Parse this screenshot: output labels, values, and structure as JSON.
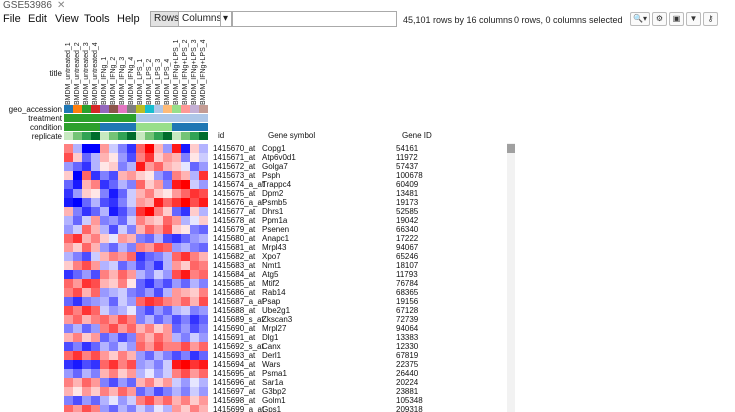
{
  "tab": {
    "title": "GSE53986"
  },
  "menu": [
    "File",
    "Edit",
    "View",
    "Tools",
    "Help"
  ],
  "toolbar": {
    "rows_label": "Rows",
    "columns_label": "Columns",
    "dropdown_arrow": "▾",
    "search_value": "",
    "summary": "45,101 rows by 16 columns",
    "selection": "0 rows, 0 columns selected",
    "icons": [
      "zoom-icon",
      "gear-icon",
      "save-icon",
      "filter-icon",
      "key-icon"
    ],
    "icon_glyphs": [
      "🔍▾",
      "⚙",
      "▣",
      "▼",
      "⚷"
    ]
  },
  "row_labels": {
    "title": "title",
    "geo_accession": "geo_accession",
    "treatment": "treatment",
    "condition": "condition",
    "replicate": "replicate"
  },
  "columns": [
    "BMDM_untreated_1",
    "BMDM_untreated_2",
    "BMDM_untreated_3",
    "BMDM_untreated_4",
    "BMDM_IFNg_1",
    "BMDM_IFNg_2",
    "BMDM_IFNg_3",
    "BMDM_IFNg_4",
    "BMDM_LPS_1",
    "BMDM_LPS_2",
    "BMDM_LPS_3",
    "BMDM_LPS_4",
    "BMDM_IFNg+LPS_1",
    "BMDM_IFNg+LPS_2",
    "BMDM_IFNg+LPS_3",
    "BMDM_IFNg+LPS_4"
  ],
  "colors": {
    "geo_accession": [
      "#1f77b4",
      "#ff7f0e",
      "#2ca02c",
      "#d62728",
      "#9467bd",
      "#8c564b",
      "#e377c2",
      "#7f7f7f",
      "#bcbd22",
      "#17becf",
      "#aec7e8",
      "#ffbb78",
      "#98df8a",
      "#ff9896",
      "#c5b0d5",
      "#c49c94"
    ],
    "treatment": [
      "#2ca02c",
      "#2ca02c",
      "#2ca02c",
      "#2ca02c",
      "#2ca02c",
      "#2ca02c",
      "#2ca02c",
      "#2ca02c",
      "#aec7e8",
      "#aec7e8",
      "#aec7e8",
      "#aec7e8",
      "#aec7e8",
      "#aec7e8",
      "#aec7e8",
      "#aec7e8"
    ],
    "condition": [
      "#2ca02c",
      "#2ca02c",
      "#2ca02c",
      "#2ca02c",
      "#1f77b4",
      "#1f77b4",
      "#1f77b4",
      "#1f77b4",
      "#98df8a",
      "#98df8a",
      "#98df8a",
      "#98df8a",
      "#1f77b4",
      "#1f77b4",
      "#1f77b4",
      "#1f77b4"
    ],
    "replicate": [
      "#c7e9c0",
      "#74c476",
      "#31a354",
      "#006d2c",
      "#c7e9c0",
      "#74c476",
      "#31a354",
      "#006d2c",
      "#c7e9c0",
      "#74c476",
      "#31a354",
      "#006d2c",
      "#c7e9c0",
      "#74c476",
      "#31a354",
      "#006d2c"
    ]
  },
  "table_headers": {
    "id": "id",
    "symbol": "Gene symbol",
    "gene_id": "Gene ID"
  },
  "rows": [
    {
      "id": "1415670_at",
      "symbol": "Copg1",
      "gene_id": "54161"
    },
    {
      "id": "1415671_at",
      "symbol": "Atp6v0d1",
      "gene_id": "11972"
    },
    {
      "id": "1415672_at",
      "symbol": "Golga7",
      "gene_id": "57437"
    },
    {
      "id": "1415673_at",
      "symbol": "Psph",
      "gene_id": "100678"
    },
    {
      "id": "1415674_a_at",
      "symbol": "Trappc4",
      "gene_id": "60409"
    },
    {
      "id": "1415675_at",
      "symbol": "Dpm2",
      "gene_id": "13481"
    },
    {
      "id": "1415676_a_at",
      "symbol": "Psmb5",
      "gene_id": "19173"
    },
    {
      "id": "1415677_at",
      "symbol": "Dhrs1",
      "gene_id": "52585"
    },
    {
      "id": "1415678_at",
      "symbol": "Ppm1a",
      "gene_id": "19042"
    },
    {
      "id": "1415679_at",
      "symbol": "Psenen",
      "gene_id": "66340"
    },
    {
      "id": "1415680_at",
      "symbol": "Anapc1",
      "gene_id": "17222"
    },
    {
      "id": "1415681_at",
      "symbol": "Mrpl43",
      "gene_id": "94067"
    },
    {
      "id": "1415682_at",
      "symbol": "Xpo7",
      "gene_id": "65246"
    },
    {
      "id": "1415683_at",
      "symbol": "Nmt1",
      "gene_id": "18107"
    },
    {
      "id": "1415684_at",
      "symbol": "Atg5",
      "gene_id": "11793"
    },
    {
      "id": "1415685_at",
      "symbol": "Mtif2",
      "gene_id": "76784"
    },
    {
      "id": "1415686_at",
      "symbol": "Rab14",
      "gene_id": "68365"
    },
    {
      "id": "1415687_a_at",
      "symbol": "Psap",
      "gene_id": "19156"
    },
    {
      "id": "1415688_at",
      "symbol": "Ube2g1",
      "gene_id": "67128"
    },
    {
      "id": "1415689_s_at",
      "symbol": "Zkscan3",
      "gene_id": "72739"
    },
    {
      "id": "1415690_at",
      "symbol": "Mrpl27",
      "gene_id": "94064"
    },
    {
      "id": "1415691_at",
      "symbol": "Dlg1",
      "gene_id": "13383"
    },
    {
      "id": "1415692_s_at",
      "symbol": "Canx",
      "gene_id": "12330"
    },
    {
      "id": "1415693_at",
      "symbol": "Derl1",
      "gene_id": "67819"
    },
    {
      "id": "1415694_at",
      "symbol": "Wars",
      "gene_id": "22375"
    },
    {
      "id": "1415695_at",
      "symbol": "Psma1",
      "gene_id": "26440"
    },
    {
      "id": "1415696_at",
      "symbol": "Sar1a",
      "gene_id": "20224"
    },
    {
      "id": "1415697_at",
      "symbol": "G3bp2",
      "gene_id": "23881"
    },
    {
      "id": "1415698_at",
      "symbol": "Golm1",
      "gene_id": "105348"
    },
    {
      "id": "1415699_a_at",
      "symbol": "Gps1",
      "gene_id": "209318"
    }
  ],
  "heatmap": [
    [
      0.5,
      -0.3,
      -1,
      -1,
      0.4,
      -0.2,
      -0.5,
      -0.8,
      0.6,
      1,
      0.3,
      -0.4,
      0.9,
      -0.9,
      0.2,
      -0.3
    ],
    [
      0.7,
      0.2,
      -0.6,
      -0.3,
      0.3,
      0.1,
      -0.4,
      -0.7,
      0.5,
      0.8,
      0.2,
      0.4,
      0.3,
      -0.5,
      0.1,
      -0.2
    ],
    [
      -0.4,
      -0.6,
      -0.8,
      -0.3,
      0.1,
      0.2,
      -0.5,
      -0.3,
      0.9,
      0.4,
      0.6,
      0.3,
      0.2,
      -0.1,
      -0.6,
      -0.4
    ],
    [
      0.2,
      -1,
      0.6,
      -0.8,
      -0.5,
      -0.7,
      0.3,
      0.4,
      0.2,
      0.1,
      -0.4,
      -0.6,
      0.5,
      0.3,
      -0.3,
      0.8
    ],
    [
      -0.6,
      -0.9,
      0.3,
      0.5,
      -0.8,
      -0.6,
      -0.3,
      -0.5,
      0.6,
      0.2,
      0.4,
      -0.5,
      0.9,
      1,
      -0.2,
      -0.4
    ],
    [
      -0.8,
      -0.4,
      0.2,
      0.1,
      -0.5,
      -0.9,
      -0.6,
      -0.2,
      0.3,
      0.5,
      0.2,
      0.1,
      0.4,
      0.6,
      0.8,
      0.7
    ],
    [
      -0.9,
      -1,
      -0.6,
      -0.3,
      -0.7,
      -0.8,
      -0.5,
      -0.2,
      0.4,
      0.3,
      0.9,
      0.6,
      0.8,
      1,
      0.7,
      0.9
    ],
    [
      0.3,
      -0.5,
      -0.8,
      -0.6,
      -0.3,
      -0.9,
      -0.7,
      -0.4,
      0.8,
      1,
      0.5,
      0.2,
      -0.6,
      -0.8,
      0.2,
      -0.3
    ],
    [
      -0.3,
      -0.6,
      -0.2,
      0.4,
      -0.5,
      -0.4,
      -0.6,
      -0.2,
      0.5,
      0.3,
      0.2,
      0.6,
      0.4,
      -0.3,
      -0.1,
      0.2
    ],
    [
      -0.4,
      -0.2,
      0.6,
      0.3,
      -0.3,
      -0.7,
      -0.2,
      -0.5,
      0.3,
      0.6,
      0.4,
      0.7,
      0.2,
      0.1,
      -0.5,
      -0.6
    ],
    [
      0.6,
      0.8,
      0.3,
      0.5,
      0.2,
      -0.1,
      0.4,
      0.3,
      -0.5,
      -0.6,
      -0.3,
      -0.7,
      -0.8,
      -0.6,
      -0.4,
      -0.3
    ],
    [
      0.4,
      0.2,
      0.6,
      0.3,
      -0.4,
      -0.6,
      -0.3,
      -0.5,
      0.5,
      0.4,
      0.7,
      0.6,
      -0.4,
      -0.3,
      -0.5,
      -0.6
    ],
    [
      -0.3,
      -0.5,
      -0.7,
      -0.2,
      0.3,
      0.5,
      0.4,
      0.6,
      -0.8,
      -0.6,
      -0.5,
      -0.3,
      0.6,
      0.8,
      0.5,
      0.3
    ],
    [
      0.2,
      0.5,
      0.7,
      0.4,
      -0.3,
      -0.2,
      -0.6,
      -0.4,
      -0.7,
      -0.5,
      -0.8,
      -0.3,
      0.4,
      0.2,
      0.6,
      0.5
    ],
    [
      -0.8,
      -0.6,
      -0.4,
      -0.7,
      0.5,
      0.3,
      0.6,
      0.4,
      -0.3,
      -0.5,
      -0.2,
      -0.4,
      0.7,
      0.9,
      0.5,
      0.6
    ],
    [
      0.6,
      0.4,
      0.8,
      0.7,
      0.3,
      0.2,
      0.5,
      0.1,
      -0.6,
      -0.8,
      -0.5,
      -0.7,
      -0.4,
      -0.6,
      -0.3,
      -0.5
    ],
    [
      0.5,
      0.7,
      0.3,
      0.6,
      -0.4,
      -0.3,
      -0.2,
      -0.5,
      -0.6,
      -0.4,
      -0.7,
      -0.3,
      0.4,
      0.3,
      0.2,
      0.5
    ],
    [
      -0.6,
      -0.8,
      -0.5,
      -0.4,
      -0.3,
      -0.6,
      -0.2,
      -0.4,
      0.6,
      0.8,
      0.7,
      0.5,
      0.4,
      0.6,
      0.3,
      0.7
    ],
    [
      0.7,
      0.5,
      0.8,
      0.6,
      -0.2,
      -0.4,
      -0.3,
      -0.1,
      -0.5,
      -0.7,
      -0.4,
      -0.6,
      -0.3,
      -0.2,
      -0.5,
      -0.4
    ],
    [
      0.4,
      0.6,
      0.3,
      0.5,
      0.6,
      0.4,
      0.7,
      0.5,
      -0.5,
      -0.3,
      -0.6,
      -0.4,
      -0.7,
      -0.5,
      -0.8,
      -0.6
    ],
    [
      -0.5,
      -0.3,
      -0.6,
      -0.4,
      0.5,
      0.7,
      0.4,
      0.6,
      0.3,
      0.5,
      0.2,
      0.4,
      -0.6,
      -0.4,
      -0.7,
      -0.5
    ],
    [
      0.3,
      0.5,
      0.2,
      0.4,
      -0.6,
      -0.4,
      -0.7,
      -0.5,
      0.5,
      0.3,
      0.6,
      0.4,
      -0.3,
      -0.5,
      -0.2,
      -0.4
    ],
    [
      -0.7,
      -0.5,
      -0.8,
      -0.6,
      -0.3,
      -0.5,
      -0.2,
      -0.4,
      0.6,
      0.4,
      0.7,
      0.5,
      0.5,
      0.7,
      0.4,
      0.6
    ],
    [
      0.6,
      0.8,
      0.5,
      0.7,
      0.4,
      0.2,
      0.5,
      0.3,
      -0.4,
      -0.6,
      -0.3,
      -0.5,
      -0.7,
      -0.5,
      -0.8,
      -0.6
    ],
    [
      -0.8,
      -0.9,
      -0.7,
      -0.8,
      0.6,
      0.8,
      0.5,
      0.7,
      -0.4,
      -0.3,
      -0.5,
      -0.2,
      0.9,
      1,
      0.8,
      0.9
    ],
    [
      -0.4,
      -0.6,
      -0.3,
      -0.5,
      0.3,
      0.5,
      0.2,
      0.4,
      -0.3,
      -0.1,
      -0.4,
      -0.2,
      0.5,
      0.7,
      0.4,
      0.6
    ],
    [
      0.5,
      0.3,
      0.6,
      0.4,
      -0.5,
      -0.7,
      -0.4,
      -0.6,
      0.3,
      0.5,
      0.2,
      0.4,
      -0.2,
      -0.4,
      -0.1,
      -0.3
    ],
    [
      0.3,
      0.1,
      0.4,
      0.2,
      0.5,
      0.3,
      0.6,
      0.4,
      -0.6,
      -0.4,
      -0.7,
      -0.5,
      -0.3,
      -0.5,
      -0.2,
      -0.4
    ],
    [
      -0.5,
      -0.7,
      -0.4,
      -0.6,
      -0.3,
      -0.1,
      -0.4,
      -0.2,
      0.5,
      0.7,
      0.4,
      0.6,
      0.3,
      0.5,
      0.2,
      0.4
    ],
    [
      0.6,
      0.4,
      0.7,
      0.5,
      -0.4,
      -0.6,
      -0.3,
      -0.5,
      -0.2,
      -0.4,
      -0.1,
      -0.3,
      0.4,
      0.2,
      0.5,
      0.3
    ]
  ]
}
